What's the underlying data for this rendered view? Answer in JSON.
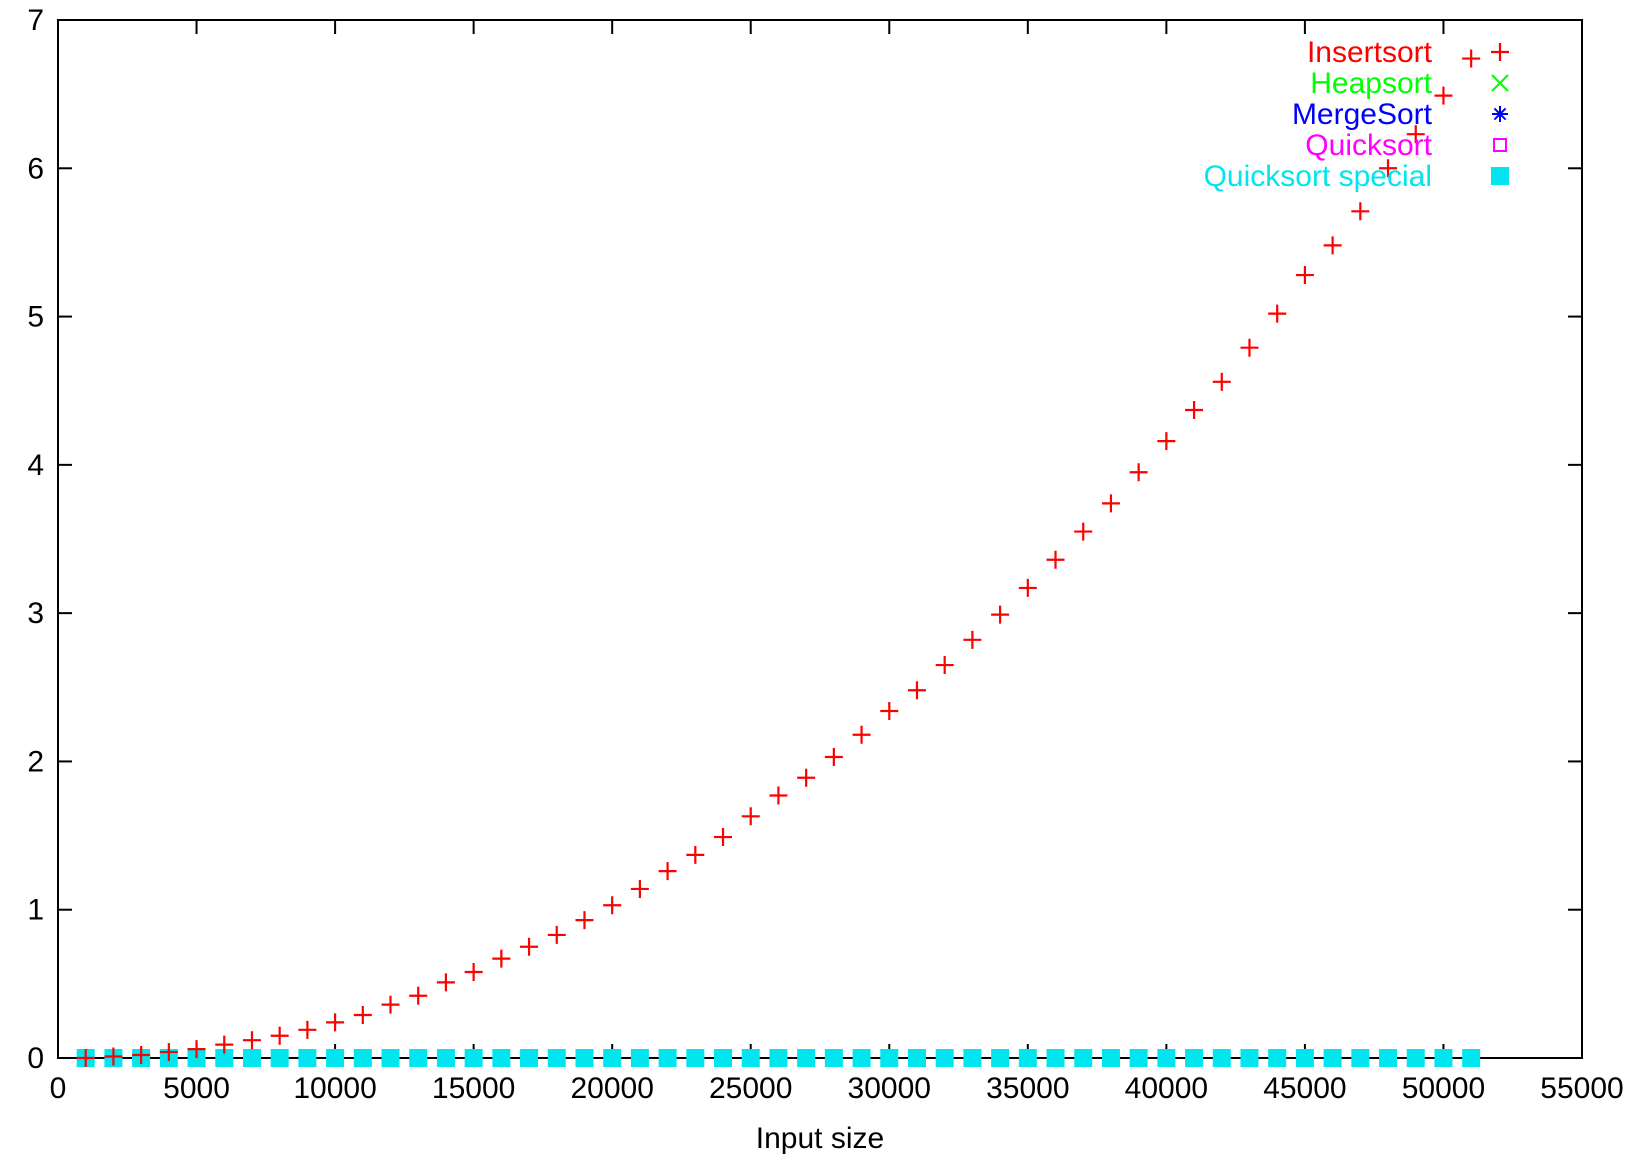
{
  "chart_data": {
    "type": "scatter",
    "title": "",
    "xlabel": "Input size",
    "ylabel": "",
    "xlim": [
      0,
      55000
    ],
    "ylim": [
      0,
      7
    ],
    "xticks": [
      0,
      5000,
      10000,
      15000,
      20000,
      25000,
      30000,
      35000,
      40000,
      45000,
      50000,
      55000
    ],
    "yticks": [
      0,
      1,
      2,
      3,
      4,
      5,
      6,
      7
    ],
    "xtick_labels": [
      "0",
      "5000",
      "10000",
      "15000",
      "20000",
      "25000",
      "30000",
      "35000",
      "40000",
      "45000",
      "50000",
      "55000"
    ],
    "ytick_labels": [
      "0",
      "1",
      "2",
      "3",
      "4",
      "5",
      "6",
      "7"
    ],
    "grid": false,
    "legend_position": "top-right",
    "series": [
      {
        "name": "Insertsort",
        "marker": "plus",
        "color": "#ff0000",
        "x": [
          1000,
          2000,
          3000,
          4000,
          5000,
          6000,
          7000,
          8000,
          9000,
          10000,
          11000,
          12000,
          13000,
          14000,
          15000,
          16000,
          17000,
          18000,
          19000,
          20000,
          21000,
          22000,
          23000,
          24000,
          25000,
          26000,
          27000,
          28000,
          29000,
          30000,
          31000,
          32000,
          33000,
          34000,
          35000,
          36000,
          37000,
          38000,
          39000,
          40000,
          41000,
          42000,
          43000,
          44000,
          45000,
          46000,
          47000,
          48000,
          49000,
          50000,
          51000
        ],
        "y": [
          0.0,
          0.01,
          0.02,
          0.04,
          0.06,
          0.09,
          0.12,
          0.15,
          0.19,
          0.24,
          0.29,
          0.36,
          0.42,
          0.51,
          0.58,
          0.67,
          0.75,
          0.83,
          0.93,
          1.03,
          1.14,
          1.26,
          1.37,
          1.49,
          1.63,
          1.77,
          1.89,
          2.03,
          2.18,
          2.34,
          2.48,
          2.65,
          2.82,
          2.99,
          3.17,
          3.36,
          3.55,
          3.74,
          3.95,
          4.16,
          4.37,
          4.56,
          4.79,
          5.02,
          5.28,
          5.48,
          5.71,
          6.0,
          6.23,
          6.49,
          6.74
        ]
      },
      {
        "name": "Heapsort",
        "marker": "cross",
        "color": "#00ff00",
        "x": [
          1000,
          2000,
          3000,
          4000,
          5000,
          6000,
          7000,
          8000,
          9000,
          10000,
          11000,
          12000,
          13000,
          14000,
          15000,
          16000,
          17000,
          18000,
          19000,
          20000,
          21000,
          22000,
          23000,
          24000,
          25000,
          26000,
          27000,
          28000,
          29000,
          30000,
          31000,
          32000,
          33000,
          34000,
          35000,
          36000,
          37000,
          38000,
          39000,
          40000,
          41000,
          42000,
          43000,
          44000,
          45000,
          46000,
          47000,
          48000,
          49000,
          50000,
          51000
        ],
        "y": [
          0,
          0,
          0,
          0,
          0,
          0,
          0,
          0,
          0,
          0,
          0,
          0,
          0,
          0,
          0,
          0,
          0,
          0,
          0,
          0,
          0,
          0,
          0,
          0,
          0,
          0,
          0,
          0,
          0,
          0,
          0,
          0,
          0,
          0,
          0,
          0,
          0,
          0,
          0,
          0,
          0,
          0,
          0,
          0,
          0,
          0,
          0,
          0,
          0,
          0,
          0
        ]
      },
      {
        "name": "MergeSort",
        "marker": "star",
        "color": "#0000ff",
        "x": [
          1000,
          2000,
          3000,
          4000,
          5000,
          6000,
          7000,
          8000,
          9000,
          10000,
          11000,
          12000,
          13000,
          14000,
          15000,
          16000,
          17000,
          18000,
          19000,
          20000,
          21000,
          22000,
          23000,
          24000,
          25000,
          26000,
          27000,
          28000,
          29000,
          30000,
          31000,
          32000,
          33000,
          34000,
          35000,
          36000,
          37000,
          38000,
          39000,
          40000,
          41000,
          42000,
          43000,
          44000,
          45000,
          46000,
          47000,
          48000,
          49000,
          50000,
          51000
        ],
        "y": [
          0,
          0,
          0,
          0,
          0,
          0,
          0,
          0,
          0,
          0,
          0,
          0,
          0,
          0,
          0,
          0,
          0,
          0,
          0,
          0,
          0,
          0,
          0,
          0,
          0,
          0,
          0,
          0,
          0,
          0,
          0,
          0,
          0,
          0,
          0,
          0,
          0,
          0,
          0,
          0,
          0,
          0,
          0,
          0,
          0,
          0,
          0,
          0,
          0,
          0,
          0
        ]
      },
      {
        "name": "Quicksort",
        "marker": "open-square",
        "color": "#ff00ff",
        "x": [
          1000,
          2000,
          3000,
          4000,
          5000,
          6000,
          7000,
          8000,
          9000,
          10000,
          11000,
          12000,
          13000,
          14000,
          15000,
          16000,
          17000,
          18000,
          19000,
          20000,
          21000,
          22000,
          23000,
          24000,
          25000,
          26000,
          27000,
          28000,
          29000,
          30000,
          31000,
          32000,
          33000,
          34000,
          35000,
          36000,
          37000,
          38000,
          39000,
          40000,
          41000,
          42000,
          43000,
          44000,
          45000,
          46000,
          47000,
          48000,
          49000,
          50000,
          51000
        ],
        "y": [
          0,
          0,
          0,
          0,
          0,
          0,
          0,
          0,
          0,
          0,
          0,
          0,
          0,
          0,
          0,
          0,
          0,
          0,
          0,
          0,
          0,
          0,
          0,
          0,
          0,
          0,
          0,
          0,
          0,
          0,
          0,
          0,
          0,
          0,
          0,
          0,
          0,
          0,
          0,
          0,
          0,
          0,
          0,
          0,
          0,
          0,
          0,
          0,
          0,
          0,
          0
        ]
      },
      {
        "name": "Quicksort special",
        "marker": "filled-square",
        "color": "#00e5ee",
        "x": [
          1000,
          2000,
          3000,
          4000,
          5000,
          6000,
          7000,
          8000,
          9000,
          10000,
          11000,
          12000,
          13000,
          14000,
          15000,
          16000,
          17000,
          18000,
          19000,
          20000,
          21000,
          22000,
          23000,
          24000,
          25000,
          26000,
          27000,
          28000,
          29000,
          30000,
          31000,
          32000,
          33000,
          34000,
          35000,
          36000,
          37000,
          38000,
          39000,
          40000,
          41000,
          42000,
          43000,
          44000,
          45000,
          46000,
          47000,
          48000,
          49000,
          50000,
          51000
        ],
        "y": [
          0,
          0,
          0,
          0,
          0,
          0,
          0,
          0,
          0,
          0,
          0,
          0,
          0,
          0,
          0,
          0,
          0,
          0,
          0,
          0,
          0,
          0,
          0,
          0,
          0,
          0,
          0,
          0,
          0,
          0,
          0,
          0,
          0,
          0,
          0,
          0,
          0,
          0,
          0,
          0,
          0,
          0,
          0,
          0,
          0,
          0,
          0,
          0,
          0,
          0,
          0
        ]
      }
    ]
  }
}
